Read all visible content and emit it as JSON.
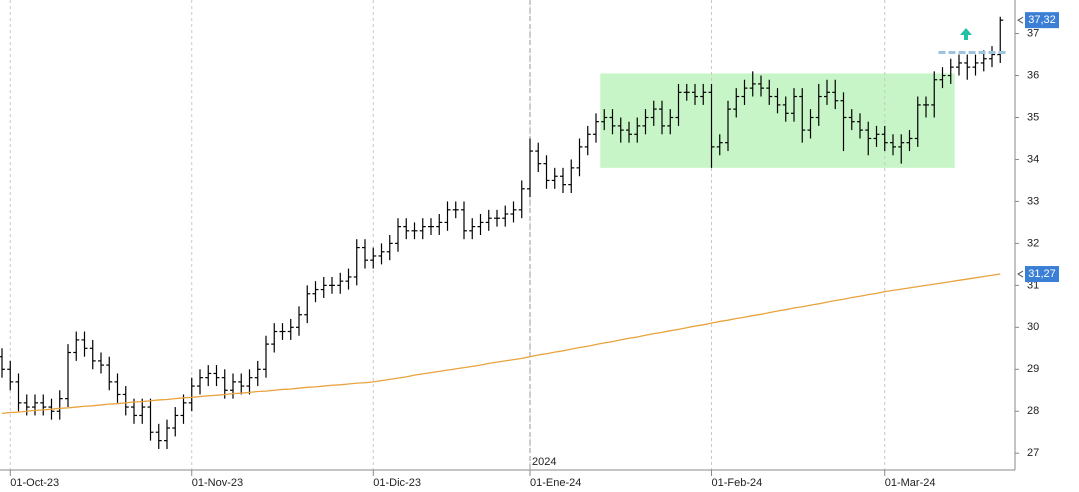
{
  "chart_data": {
    "type": "ohlc",
    "categories": [
      null,
      "01-Oct-23",
      null,
      null,
      null,
      null,
      null,
      null,
      null,
      null,
      null,
      null,
      null,
      null,
      null,
      null,
      null,
      null,
      null,
      null,
      null,
      null,
      null,
      "01-Nov-23",
      null,
      null,
      null,
      null,
      null,
      null,
      null,
      null,
      null,
      null,
      null,
      null,
      null,
      null,
      null,
      null,
      null,
      null,
      null,
      null,
      null,
      "01-Dic-23",
      null,
      null,
      null,
      null,
      null,
      null,
      null,
      null,
      null,
      null,
      null,
      null,
      null,
      null,
      null,
      null,
      null,
      null,
      "01-Ene-24",
      null,
      null,
      null,
      null,
      null,
      null,
      null,
      null,
      null,
      null,
      null,
      null,
      null,
      null,
      null,
      null,
      null,
      null,
      null,
      null,
      null,
      "01-Feb-24",
      null,
      null,
      null,
      null,
      null,
      null,
      null,
      null,
      null,
      null,
      null,
      null,
      null,
      null,
      null,
      null,
      null,
      null,
      null,
      null,
      "01-Mar-24",
      null,
      null,
      null,
      null,
      null,
      null,
      null,
      null,
      null,
      null,
      null,
      null,
      null,
      null
    ],
    "year_label": "2024",
    "series": [
      {
        "type": "ohlc",
        "color": "#000000",
        "last_value_label": "37,32",
        "values": [
          [
            29.3,
            29.5,
            28.8,
            29.0
          ],
          [
            29.0,
            29.2,
            28.5,
            28.7
          ],
          [
            28.7,
            28.9,
            28.0,
            28.2
          ],
          [
            28.2,
            28.4,
            27.9,
            28.1
          ],
          [
            28.1,
            28.4,
            27.9,
            28.2
          ],
          [
            28.2,
            28.4,
            27.9,
            28.1
          ],
          [
            28.1,
            28.3,
            27.8,
            28.0
          ],
          [
            28.0,
            28.5,
            27.8,
            28.3
          ],
          [
            28.3,
            29.6,
            28.1,
            29.4
          ],
          [
            29.4,
            29.9,
            29.2,
            29.7
          ],
          [
            29.7,
            29.9,
            29.3,
            29.5
          ],
          [
            29.5,
            29.7,
            29.0,
            29.2
          ],
          [
            29.2,
            29.4,
            28.9,
            29.1
          ],
          [
            29.1,
            29.3,
            28.5,
            28.7
          ],
          [
            28.7,
            28.9,
            28.2,
            28.4
          ],
          [
            28.4,
            28.6,
            27.9,
            28.1
          ],
          [
            28.1,
            28.3,
            27.7,
            27.9
          ],
          [
            27.9,
            28.3,
            27.7,
            28.1
          ],
          [
            28.1,
            28.3,
            27.3,
            27.5
          ],
          [
            27.5,
            27.7,
            27.1,
            27.3
          ],
          [
            27.3,
            27.8,
            27.1,
            27.6
          ],
          [
            27.6,
            28.1,
            27.4,
            27.9
          ],
          [
            27.9,
            28.4,
            27.7,
            28.2
          ],
          [
            28.2,
            28.8,
            28.0,
            28.6
          ],
          [
            28.6,
            29.0,
            28.4,
            28.8
          ],
          [
            28.8,
            29.1,
            28.6,
            28.9
          ],
          [
            28.9,
            29.1,
            28.6,
            28.8
          ],
          [
            28.8,
            29.0,
            28.3,
            28.5
          ],
          [
            28.5,
            28.9,
            28.3,
            28.7
          ],
          [
            28.7,
            28.9,
            28.4,
            28.6
          ],
          [
            28.6,
            29.0,
            28.4,
            28.8
          ],
          [
            28.8,
            29.2,
            28.6,
            29.0
          ],
          [
            29.0,
            29.8,
            28.8,
            29.6
          ],
          [
            29.6,
            30.1,
            29.4,
            29.9
          ],
          [
            29.9,
            30.1,
            29.7,
            29.9
          ],
          [
            29.9,
            30.2,
            29.7,
            30.0
          ],
          [
            30.0,
            30.5,
            29.8,
            30.3
          ],
          [
            30.3,
            31.0,
            30.1,
            30.8
          ],
          [
            30.8,
            31.1,
            30.6,
            30.9
          ],
          [
            30.9,
            31.2,
            30.7,
            31.0
          ],
          [
            31.0,
            31.2,
            30.8,
            31.0
          ],
          [
            31.0,
            31.3,
            30.8,
            31.1
          ],
          [
            31.1,
            31.4,
            30.9,
            31.2
          ],
          [
            31.2,
            32.1,
            31.0,
            31.9
          ],
          [
            31.9,
            32.1,
            31.4,
            31.6
          ],
          [
            31.6,
            31.9,
            31.4,
            31.7
          ],
          [
            31.7,
            32.0,
            31.5,
            31.8
          ],
          [
            31.8,
            32.2,
            31.6,
            32.0
          ],
          [
            32.0,
            32.6,
            31.8,
            32.4
          ],
          [
            32.4,
            32.6,
            32.1,
            32.3
          ],
          [
            32.3,
            32.5,
            32.1,
            32.3
          ],
          [
            32.3,
            32.6,
            32.1,
            32.4
          ],
          [
            32.4,
            32.6,
            32.2,
            32.4
          ],
          [
            32.4,
            32.7,
            32.2,
            32.5
          ],
          [
            32.5,
            33.0,
            32.3,
            32.8
          ],
          [
            32.8,
            33.0,
            32.6,
            32.8
          ],
          [
            32.8,
            33.0,
            32.1,
            32.3
          ],
          [
            32.3,
            32.6,
            32.1,
            32.4
          ],
          [
            32.4,
            32.7,
            32.2,
            32.5
          ],
          [
            32.5,
            32.8,
            32.3,
            32.6
          ],
          [
            32.6,
            32.8,
            32.4,
            32.6
          ],
          [
            32.6,
            32.9,
            32.4,
            32.7
          ],
          [
            32.7,
            33.0,
            32.5,
            32.8
          ],
          [
            32.8,
            33.5,
            32.6,
            33.3
          ],
          [
            33.3,
            34.5,
            33.1,
            34.2
          ],
          [
            34.2,
            34.4,
            33.7,
            33.9
          ],
          [
            33.9,
            34.1,
            33.3,
            33.5
          ],
          [
            33.5,
            33.8,
            33.3,
            33.6
          ],
          [
            33.6,
            33.8,
            33.2,
            33.4
          ],
          [
            33.4,
            34.0,
            33.2,
            33.8
          ],
          [
            33.8,
            34.5,
            33.6,
            34.3
          ],
          [
            34.3,
            34.8,
            34.1,
            34.6
          ],
          [
            34.6,
            35.1,
            34.4,
            34.9
          ],
          [
            34.9,
            35.2,
            34.7,
            35.0
          ],
          [
            35.0,
            35.2,
            34.6,
            34.8
          ],
          [
            34.8,
            35.0,
            34.4,
            34.7
          ],
          [
            34.7,
            34.9,
            34.4,
            34.6
          ],
          [
            34.6,
            35.0,
            34.4,
            34.8
          ],
          [
            34.8,
            35.2,
            34.6,
            35.0
          ],
          [
            35.0,
            35.4,
            34.8,
            35.2
          ],
          [
            35.2,
            35.4,
            34.6,
            34.8
          ],
          [
            34.8,
            35.2,
            34.6,
            35.0
          ],
          [
            35.0,
            35.8,
            34.8,
            35.6
          ],
          [
            35.6,
            35.8,
            35.4,
            35.6
          ],
          [
            35.6,
            35.8,
            35.3,
            35.5
          ],
          [
            35.5,
            35.8,
            35.3,
            35.6
          ],
          [
            35.6,
            35.8,
            33.8,
            34.3
          ],
          [
            34.3,
            34.6,
            34.1,
            34.4
          ],
          [
            34.4,
            35.4,
            34.2,
            35.2
          ],
          [
            35.2,
            35.7,
            35.0,
            35.5
          ],
          [
            35.5,
            35.9,
            35.3,
            35.7
          ],
          [
            35.7,
            36.1,
            35.5,
            35.8
          ],
          [
            35.8,
            36.0,
            35.5,
            35.7
          ],
          [
            35.7,
            35.9,
            35.3,
            35.5
          ],
          [
            35.5,
            35.7,
            35.1,
            35.3
          ],
          [
            35.3,
            35.5,
            34.9,
            35.1
          ],
          [
            35.1,
            35.7,
            34.9,
            35.5
          ],
          [
            35.5,
            35.7,
            34.4,
            34.7
          ],
          [
            34.7,
            35.2,
            34.5,
            35.0
          ],
          [
            35.0,
            35.8,
            34.8,
            35.5
          ],
          [
            35.5,
            35.9,
            35.3,
            35.6
          ],
          [
            35.6,
            35.9,
            35.2,
            35.4
          ],
          [
            35.4,
            35.6,
            34.2,
            35.0
          ],
          [
            35.0,
            35.2,
            34.7,
            34.9
          ],
          [
            34.9,
            35.1,
            34.5,
            34.7
          ],
          [
            34.7,
            34.9,
            34.1,
            34.5
          ],
          [
            34.5,
            34.8,
            34.3,
            34.6
          ],
          [
            34.6,
            34.8,
            34.2,
            34.4
          ],
          [
            34.4,
            34.6,
            34.1,
            34.3
          ],
          [
            34.3,
            34.6,
            33.9,
            34.4
          ],
          [
            34.4,
            34.7,
            34.2,
            34.5
          ],
          [
            34.5,
            35.5,
            34.3,
            35.3
          ],
          [
            35.3,
            35.5,
            35.0,
            35.3
          ],
          [
            35.3,
            36.1,
            35.0,
            35.9
          ],
          [
            35.9,
            36.2,
            35.7,
            36.0
          ],
          [
            36.0,
            36.4,
            35.8,
            36.2
          ],
          [
            36.2,
            36.5,
            36.0,
            36.3
          ],
          [
            36.3,
            36.5,
            35.9,
            36.2
          ],
          [
            36.2,
            36.5,
            36.0,
            36.3
          ],
          [
            36.3,
            36.6,
            36.1,
            36.4
          ],
          [
            36.4,
            36.7,
            36.2,
            36.5
          ],
          [
            36.5,
            37.4,
            36.3,
            37.32
          ]
        ]
      },
      {
        "type": "line",
        "color": "#e8a33d",
        "last_value_label": "31,27",
        "values": [
          27.95,
          27.97,
          27.98,
          28.0,
          28.02,
          28.03,
          28.05,
          28.07,
          28.08,
          28.1,
          28.12,
          28.13,
          28.15,
          28.17,
          28.18,
          28.2,
          28.22,
          28.23,
          28.25,
          28.27,
          28.28,
          28.3,
          28.32,
          28.33,
          28.35,
          28.37,
          28.38,
          28.4,
          28.42,
          28.43,
          28.45,
          28.47,
          28.48,
          28.5,
          28.52,
          28.53,
          28.55,
          28.57,
          28.58,
          28.6,
          28.62,
          28.63,
          28.65,
          28.67,
          28.68,
          28.7,
          28.73,
          28.76,
          28.79,
          28.82,
          28.86,
          28.89,
          28.92,
          28.95,
          28.98,
          29.01,
          29.04,
          29.07,
          29.1,
          29.14,
          29.17,
          29.2,
          29.23,
          29.26,
          29.3,
          29.34,
          29.37,
          29.41,
          29.44,
          29.48,
          29.52,
          29.55,
          29.59,
          29.63,
          29.66,
          29.7,
          29.74,
          29.77,
          29.81,
          29.85,
          29.88,
          29.92,
          29.95,
          29.99,
          30.03,
          30.06,
          30.1,
          30.14,
          30.17,
          30.21,
          30.24,
          30.28,
          30.31,
          30.35,
          30.39,
          30.42,
          30.46,
          30.49,
          30.53,
          30.56,
          30.6,
          30.64,
          30.67,
          30.71,
          30.74,
          30.78,
          30.81,
          30.85,
          30.88,
          30.91,
          30.94,
          30.97,
          31.0,
          31.03,
          31.06,
          31.09,
          31.12,
          31.15,
          31.18,
          31.21,
          31.24,
          31.27
        ]
      }
    ],
    "zone": {
      "x": [
        73,
        115
      ],
      "y": [
        33.8,
        36.05
      ],
      "color": "#c8f5c8"
    },
    "level": {
      "value": 36.55,
      "x": [
        114,
        121
      ],
      "color": "#9cc3e0"
    },
    "ylim": [
      26.6,
      37.8
    ],
    "yticks": [
      27,
      28,
      29,
      30,
      31,
      32,
      33,
      34,
      35,
      36,
      37
    ],
    "grid": true
  }
}
